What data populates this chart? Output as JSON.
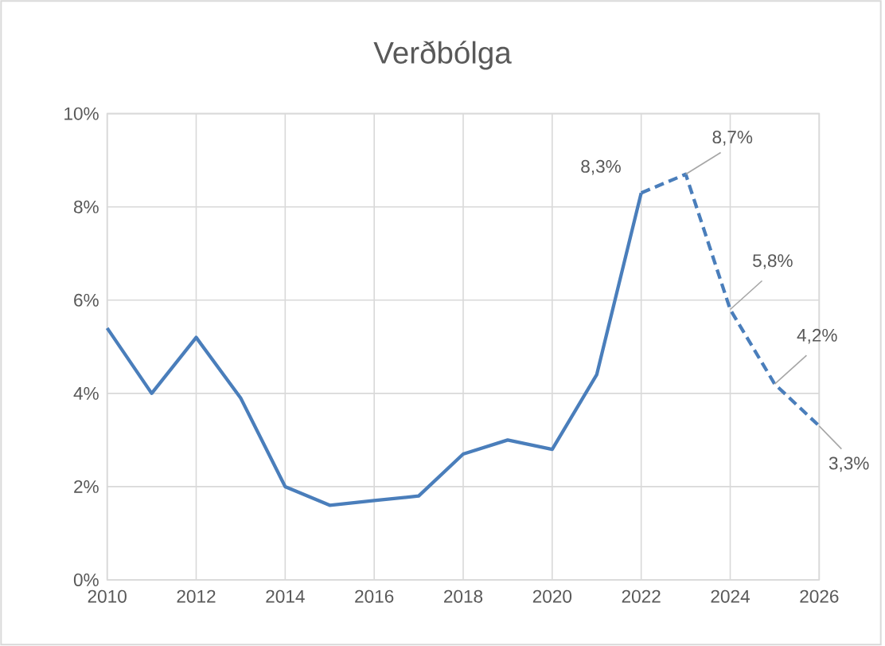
{
  "chart_data": {
    "type": "line",
    "title": "Verðbólga",
    "xlim": [
      2010,
      2026
    ],
    "xticks": [
      2010,
      2012,
      2014,
      2016,
      2018,
      2020,
      2022,
      2024,
      2026
    ],
    "ylim": [
      0,
      10
    ],
    "yticks": [
      {
        "value": 0,
        "label": "0%"
      },
      {
        "value": 2,
        "label": "2%"
      },
      {
        "value": 4,
        "label": "4%"
      },
      {
        "value": 6,
        "label": "6%"
      },
      {
        "value": 8,
        "label": "8%"
      },
      {
        "value": 10,
        "label": "10%"
      }
    ],
    "grid": true,
    "marker": "none",
    "series": [
      {
        "color": "#4a7ebb",
        "line_style": "solid",
        "x": [
          2010,
          2011,
          2012,
          2013,
          2014,
          2015,
          2016,
          2017,
          2018,
          2019,
          2020,
          2021,
          2022
        ],
        "values": [
          5.4,
          4.0,
          5.2,
          3.9,
          2.0,
          1.6,
          1.7,
          1.8,
          2.7,
          3.0,
          2.8,
          4.4,
          8.3
        ]
      },
      {
        "color": "#4a7ebb",
        "line_style": "dashed",
        "x": [
          2022,
          2023,
          2024,
          2025,
          2026
        ],
        "values": [
          8.3,
          8.7,
          5.8,
          4.2,
          3.3
        ],
        "value_labels": [
          "8,3%",
          "8,7%",
          "5,8%",
          "4,2%",
          "3,3%"
        ]
      }
    ]
  }
}
